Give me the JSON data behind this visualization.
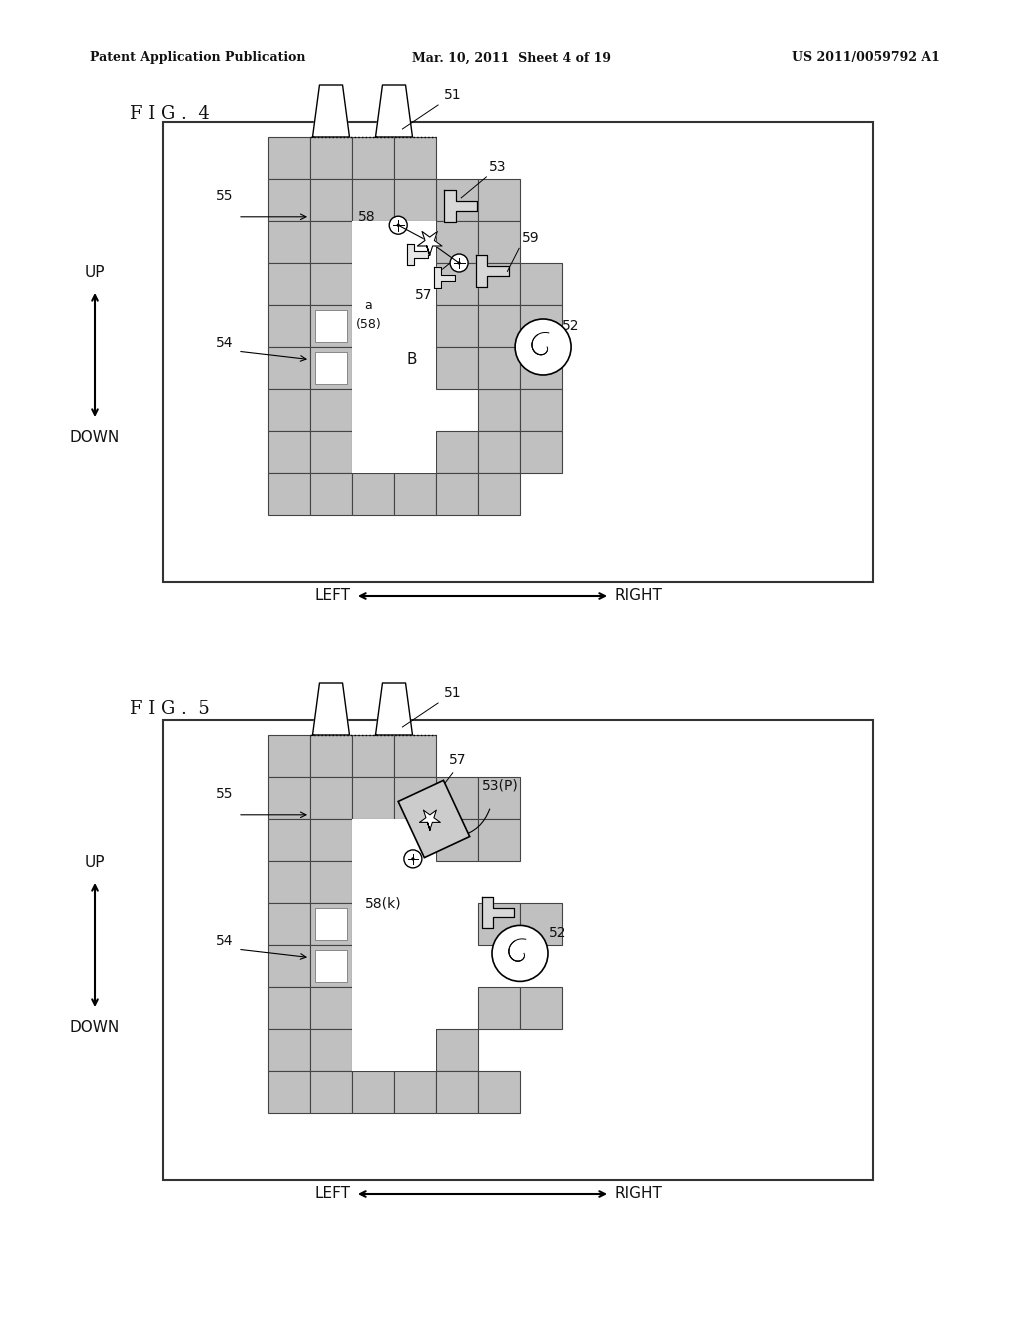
{
  "bg_color": "#ffffff",
  "header_text_left": "Patent Application Publication",
  "header_text_mid": "Mar. 10, 2011  Sheet 4 of 19",
  "header_text_right": "US 2011/0059792 A1",
  "fig4_label": "F I G .  4",
  "fig5_label": "F I G .  5",
  "tile_color": "#c0c0c0",
  "tile_border": "#444444",
  "label_color": "#111111"
}
